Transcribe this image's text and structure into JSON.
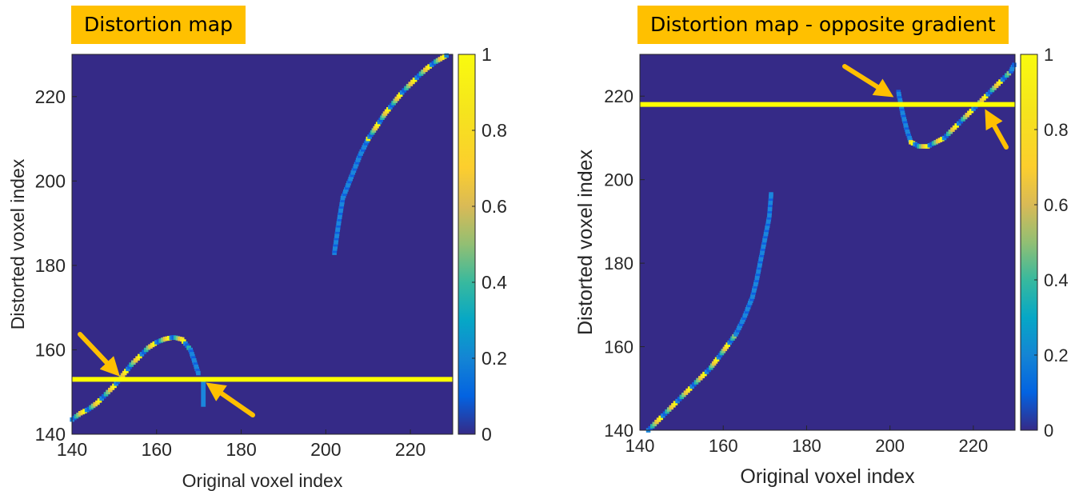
{
  "chart_data": [
    {
      "type": "heatmap",
      "title": "Distortion map",
      "xlabel": "Original voxel index",
      "ylabel": "Distorted voxel index",
      "xlim": [
        140,
        230
      ],
      "ylim": [
        140,
        230
      ],
      "xticks": [
        140,
        160,
        180,
        200,
        220
      ],
      "yticks": [
        140,
        160,
        180,
        200,
        220
      ],
      "colorbar": {
        "range": [
          0,
          1
        ],
        "ticks": [
          "0",
          "0.2",
          "0.4",
          "0.6",
          "0.8",
          "1"
        ]
      },
      "highlight_line_y": 153,
      "curve_segments": [
        {
          "x": [
            140,
            142,
            144,
            146,
            148,
            150,
            152,
            154,
            156,
            158,
            160,
            162,
            164,
            166,
            168,
            169,
            170
          ],
          "y": [
            143.5,
            145,
            146,
            147.5,
            149.5,
            151.5,
            154,
            156.5,
            158.5,
            160.5,
            161.8,
            162.6,
            163,
            162.5,
            160,
            157,
            154
          ]
        },
        {
          "x": [
            202,
            203,
            204,
            206,
            208,
            210,
            212,
            214,
            216,
            218,
            220,
            222,
            224,
            226,
            228,
            229
          ],
          "y": [
            183,
            190,
            196,
            201,
            206,
            210,
            213,
            216,
            218.5,
            221,
            223,
            225,
            226.8,
            228.3,
            229.5,
            230
          ]
        }
      ],
      "vertical_segments": [
        {
          "x": 171,
          "y_from": 146.5,
          "y_to": 152.5,
          "value": 0.15
        }
      ],
      "annotations": [
        {
          "type": "arrow",
          "target": [
            151,
            154
          ]
        },
        {
          "type": "arrow",
          "target": [
            172,
            152
          ]
        }
      ]
    },
    {
      "type": "heatmap",
      "title": "Distortion map - opposite gradient",
      "xlabel": "Original voxel index",
      "ylabel": "Distorted voxel index",
      "xlim": [
        140,
        230
      ],
      "ylim": [
        140,
        230
      ],
      "xticks": [
        140,
        160,
        180,
        200,
        220
      ],
      "yticks": [
        140,
        160,
        180,
        200,
        220
      ],
      "colorbar": {
        "range": [
          0,
          1
        ],
        "ticks": [
          "0",
          "0.2",
          "0.4",
          "0.6",
          "0.8",
          "1"
        ]
      },
      "highlight_line_y": 218,
      "curve_segments": [
        {
          "x": [
            142,
            145,
            148,
            151,
            154,
            157,
            160,
            163,
            165,
            167,
            168,
            169,
            170,
            171,
            171.5
          ],
          "y": [
            140,
            143,
            146,
            149,
            152,
            155,
            159,
            163,
            167,
            172,
            176,
            181,
            186,
            191,
            197
          ]
        },
        {
          "x": [
            202,
            203,
            204,
            205,
            207,
            209,
            211,
            213,
            215,
            217,
            219,
            221,
            223,
            225,
            227,
            229,
            230
          ],
          "y": [
            221,
            216,
            212,
            209,
            208,
            208,
            209,
            210,
            212,
            214,
            216,
            218,
            220,
            222,
            224,
            226,
            228
          ]
        }
      ],
      "vertical_segments": [],
      "annotations": [
        {
          "type": "arrow",
          "target": [
            200.5,
            220
          ]
        },
        {
          "type": "arrow",
          "target": [
            223,
            216.5
          ]
        }
      ]
    }
  ]
}
